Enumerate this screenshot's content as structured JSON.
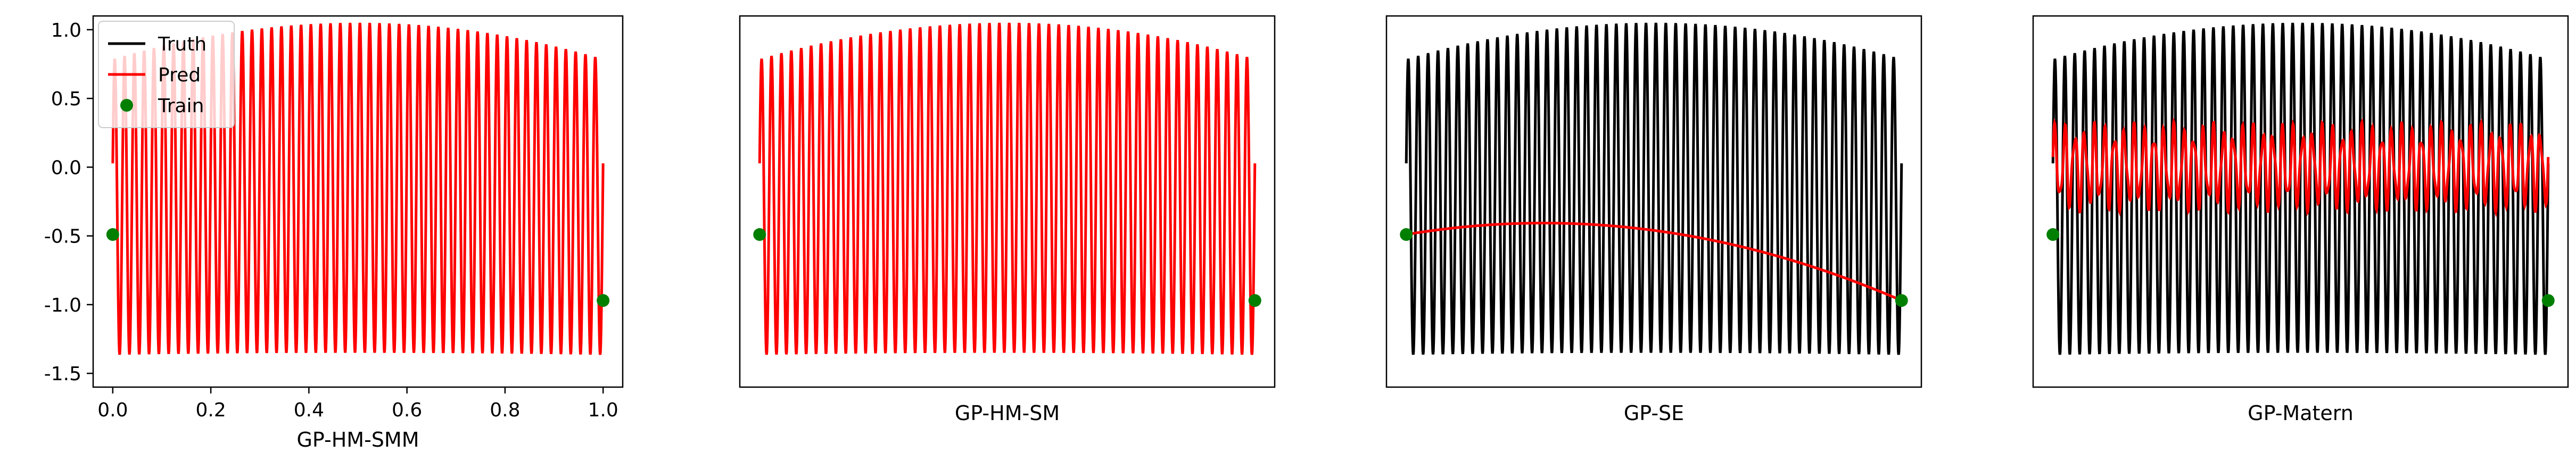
{
  "colors": {
    "truth": "#000000",
    "pred": "#ff0000",
    "train": "#007f00"
  },
  "chart_data": [
    {
      "type": "line",
      "xlabel": "GP-HM-SMM",
      "xlim": [
        -0.04,
        1.04
      ],
      "ylim": [
        -1.6,
        1.1
      ],
      "xticks": [
        "0.0",
        "0.2",
        "0.4",
        "0.6",
        "0.8",
        "1.0"
      ],
      "yticks": [
        "1.0",
        "0.5",
        "0.0",
        "-0.5",
        "-1.0",
        "-1.5"
      ],
      "show_axes_ticks": true,
      "legend": {
        "position": "upper-left",
        "entries": [
          "Truth",
          "Pred",
          "Train"
        ]
      },
      "train_points": [
        [
          0.0,
          -0.49
        ],
        [
          1.0,
          -0.97
        ]
      ],
      "pred_kind": "full"
    },
    {
      "type": "line",
      "xlabel": "GP-HM-SM",
      "xlim": [
        -0.04,
        1.04
      ],
      "ylim": [
        -1.6,
        1.1
      ],
      "show_axes_ticks": false,
      "train_points": [
        [
          0.0,
          -0.49
        ],
        [
          1.0,
          -0.97
        ]
      ],
      "pred_kind": "full"
    },
    {
      "type": "line",
      "xlabel": "GP-SE",
      "xlim": [
        -0.04,
        1.04
      ],
      "ylim": [
        -1.6,
        1.1
      ],
      "show_axes_ticks": false,
      "train_points": [
        [
          0.0,
          -0.49
        ],
        [
          1.0,
          -0.97
        ]
      ],
      "pred_kind": "smooth"
    },
    {
      "type": "line",
      "xlabel": "GP-Matern",
      "xlim": [
        -0.04,
        1.04
      ],
      "ylim": [
        -1.6,
        1.1
      ],
      "show_axes_ticks": false,
      "train_points": [
        [
          0.0,
          -0.49
        ],
        [
          1.0,
          -0.97
        ]
      ],
      "pred_kind": "band"
    }
  ]
}
